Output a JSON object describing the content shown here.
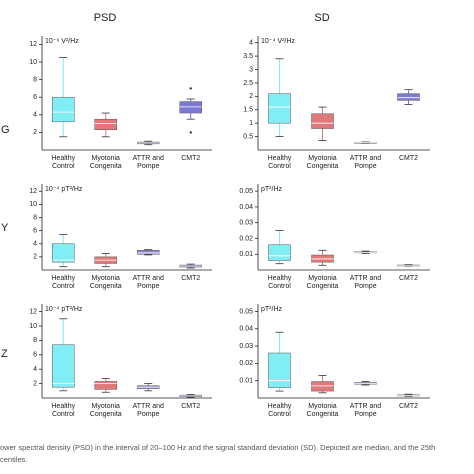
{
  "column_titles": [
    "PSD",
    "SD"
  ],
  "row_labels": [
    "G",
    "Y",
    "Z"
  ],
  "caption": [
    "ower spectral density (PSD) in the interval of 20–100 Hz and the signal standard deviation (SD). Depicted are median, and the 25th",
    "centiles."
  ],
  "chart_data": [
    {
      "type": "box",
      "unit": "10⁻⁶ V²/Hz",
      "categories": [
        [
          "Healthy",
          "Control"
        ],
        [
          "Myotonia",
          "Congenita"
        ],
        [
          "ATTR and",
          "Pompe"
        ],
        [
          "CMT2"
        ]
      ],
      "colors": [
        "#80eef4",
        "#e07a7a",
        "#8c86cc",
        "#7c78d4"
      ],
      "ylim": [
        0,
        12.5
      ],
      "yticks": [
        2,
        4,
        6,
        8,
        10,
        12
      ],
      "boxes": [
        {
          "min": 1.5,
          "q1": 3.2,
          "median": 4.3,
          "q3": 6,
          "max": 10.5
        },
        {
          "min": 1.5,
          "q1": 2.3,
          "median": 3,
          "q3": 3.5,
          "max": 4.2
        },
        {
          "min": 0.6,
          "q1": 0.7,
          "median": 0.8,
          "q3": 0.9,
          "max": 1
        },
        {
          "min": 3.5,
          "q1": 4.2,
          "median": 4.9,
          "q3": 5.5,
          "max": 5.8
        }
      ],
      "outliers": [
        [],
        [],
        [],
        [
          7,
          2
        ]
      ]
    },
    {
      "type": "box",
      "unit": "10⁻⁴ V²/Hz",
      "categories": [
        [
          "Healthy",
          "Control"
        ],
        [
          "Myotonia",
          "Congenita"
        ],
        [
          "ATTR and",
          "Pompe"
        ],
        [
          "CMT2"
        ]
      ],
      "colors": [
        "#80eef4",
        "#e07a7a",
        "#8c86cc",
        "#7c78d4"
      ],
      "ylim": [
        0,
        4.1
      ],
      "yticks": [
        0.5,
        1,
        1.5,
        2,
        2.5,
        3,
        3.5,
        4
      ],
      "boxes": [
        {
          "min": 0.5,
          "q1": 1,
          "median": 1.6,
          "q3": 2.1,
          "max": 3.4
        },
        {
          "min": 0.35,
          "q1": 0.8,
          "median": 1,
          "q3": 1.35,
          "max": 1.6
        },
        {
          "min": 0.25,
          "q1": 0.27,
          "median": 0.28,
          "q3": 0.29,
          "max": 0.3
        },
        {
          "min": 1.7,
          "q1": 1.85,
          "median": 1.95,
          "q3": 2.1,
          "max": 2.25
        }
      ]
    },
    {
      "type": "box",
      "unit": "10⁻⁴ pT²/Hz",
      "categories": [
        [
          "Healthy",
          "Control"
        ],
        [
          "Myotonia",
          "Congenita"
        ],
        [
          "ATTR and",
          "Pompe"
        ],
        [
          "CMT2"
        ]
      ],
      "colors": [
        "#80eef4",
        "#e07a7a",
        "#8c86cc",
        "#7c78d4"
      ],
      "ylim": [
        0,
        12.5
      ],
      "yticks": [
        2,
        4,
        6,
        8,
        10,
        12
      ],
      "boxes": [
        {
          "min": 0.5,
          "q1": 1.2,
          "median": 1.5,
          "q3": 4,
          "max": 5.4
        },
        {
          "min": 0.5,
          "q1": 1,
          "median": 1.5,
          "q3": 2,
          "max": 2.5
        },
        {
          "min": 2.3,
          "q1": 2.4,
          "median": 2.6,
          "q3": 3,
          "max": 3.1
        },
        {
          "min": 0.3,
          "q1": 0.45,
          "median": 0.6,
          "q3": 0.75,
          "max": 0.9
        }
      ]
    },
    {
      "type": "box",
      "unit": "pT²/Hz",
      "categories": [
        [
          "Healthy",
          "Control"
        ],
        [
          "Myotonia",
          "Congenita"
        ],
        [
          "ATTR and",
          "Pompe"
        ],
        [
          "CMT2"
        ]
      ],
      "colors": [
        "#80eef4",
        "#e07a7a",
        "#8c86cc",
        "#7c78d4"
      ],
      "ylim": [
        0,
        0.052
      ],
      "yticks": [
        0.01,
        0.02,
        0.03,
        0.04,
        0.05
      ],
      "boxes": [
        {
          "min": 0.004,
          "q1": 0.006,
          "median": 0.009,
          "q3": 0.016,
          "max": 0.025
        },
        {
          "min": 0.003,
          "q1": 0.005,
          "median": 0.007,
          "q3": 0.0095,
          "max": 0.0125
        },
        {
          "min": 0.0105,
          "q1": 0.011,
          "median": 0.0112,
          "q3": 0.0115,
          "max": 0.012
        },
        {
          "min": 0.0025,
          "q1": 0.0028,
          "median": 0.003,
          "q3": 0.0032,
          "max": 0.0035
        }
      ]
    },
    {
      "type": "box",
      "unit": "10⁻⁴ pT²/Hz",
      "categories": [
        [
          "Healthy",
          "Control"
        ],
        [
          "Myotonia",
          "Congenita"
        ],
        [
          "ATTR and",
          "Pompe"
        ],
        [
          "CMT2"
        ]
      ],
      "colors": [
        "#80eef4",
        "#e07a7a",
        "#8c86cc",
        "#7c78d4"
      ],
      "ylim": [
        0,
        12.5
      ],
      "yticks": [
        2,
        4,
        6,
        8,
        10,
        12
      ],
      "boxes": [
        {
          "min": 1,
          "q1": 1.5,
          "median": 2,
          "q3": 7.4,
          "max": 11
        },
        {
          "min": 0.8,
          "q1": 1.2,
          "median": 2,
          "q3": 2.3,
          "max": 2.7
        },
        {
          "min": 1,
          "q1": 1.3,
          "median": 1.5,
          "q3": 1.7,
          "max": 2
        },
        {
          "min": 0.1,
          "q1": 0.2,
          "median": 0.3,
          "q3": 0.4,
          "max": 0.5
        }
      ]
    },
    {
      "type": "box",
      "unit": "pT²/Hz",
      "categories": [
        [
          "Healthy",
          "Control"
        ],
        [
          "Myotonia",
          "Congenita"
        ],
        [
          "ATTR and",
          "Pompe"
        ],
        [
          "CMT2"
        ]
      ],
      "colors": [
        "#80eef4",
        "#e07a7a",
        "#8c86cc",
        "#7c78d4"
      ],
      "ylim": [
        0,
        0.052
      ],
      "yticks": [
        0.01,
        0.02,
        0.03,
        0.04,
        0.05
      ],
      "boxes": [
        {
          "min": 0.004,
          "q1": 0.006,
          "median": 0.01,
          "q3": 0.026,
          "max": 0.038
        },
        {
          "min": 0.003,
          "q1": 0.004,
          "median": 0.007,
          "q3": 0.0095,
          "max": 0.013
        },
        {
          "min": 0.0075,
          "q1": 0.008,
          "median": 0.0085,
          "q3": 0.009,
          "max": 0.0095
        },
        {
          "min": 0.001,
          "q1": 0.0012,
          "median": 0.0015,
          "q3": 0.0018,
          "max": 0.0022
        }
      ]
    }
  ]
}
